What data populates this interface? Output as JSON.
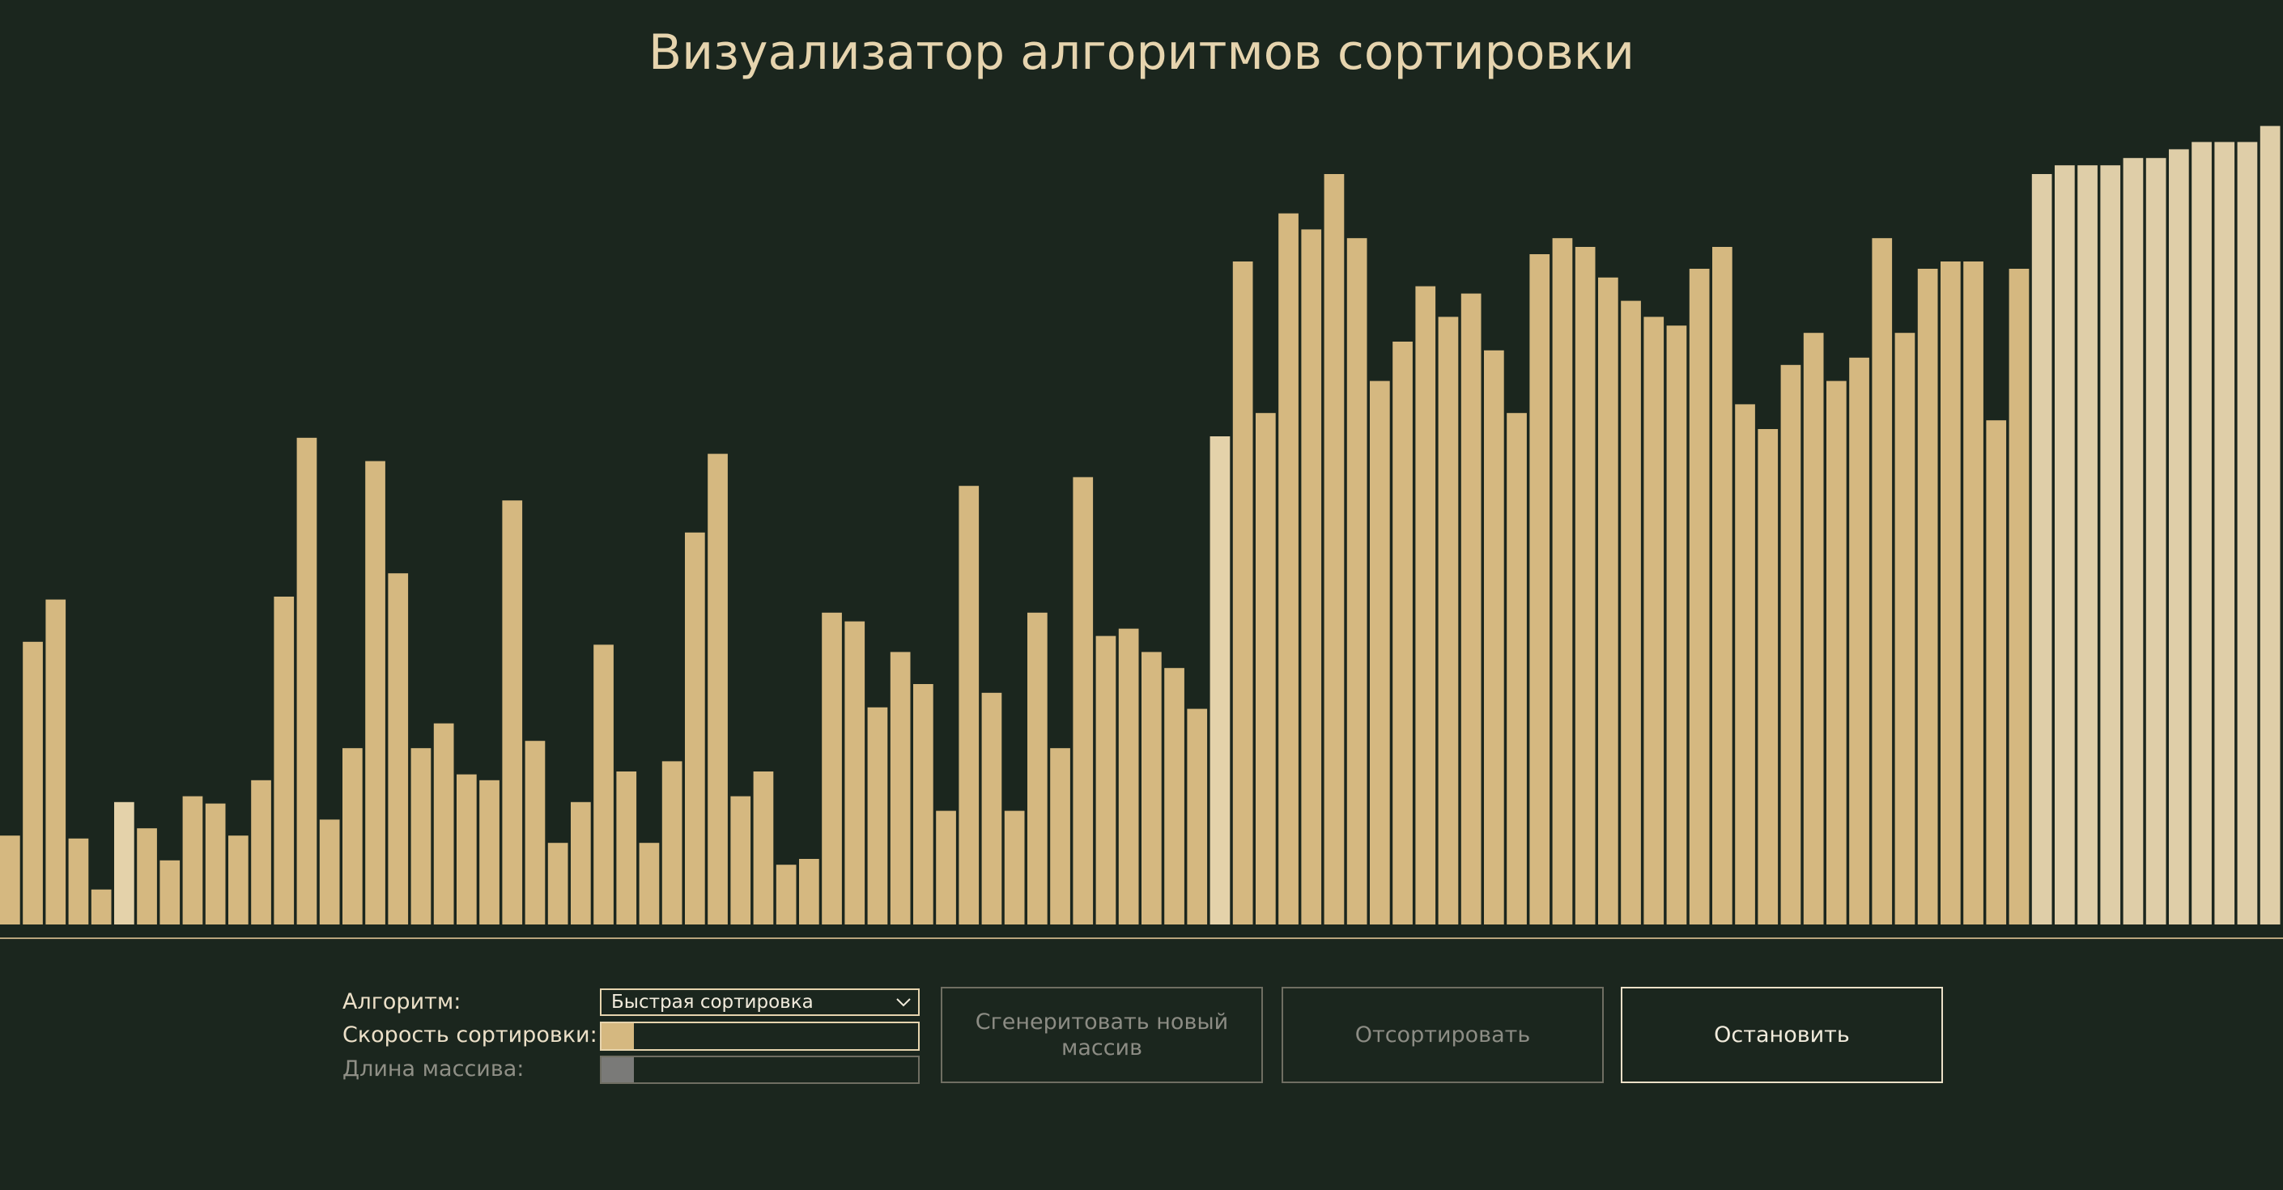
{
  "title": "Визуализатор алгоритмов сортировки",
  "array": {
    "values": [
      61,
      194,
      223,
      59,
      24,
      84,
      66,
      44,
      88,
      83,
      61,
      99,
      225,
      334,
      72,
      121,
      318,
      241,
      121,
      138,
      103,
      99,
      291,
      126,
      56,
      84,
      192,
      105,
      56,
      112,
      269,
      323,
      88,
      105,
      41,
      45,
      214,
      208,
      149,
      187,
      165,
      78,
      301,
      159,
      78,
      214,
      121,
      307,
      198,
      203,
      187,
      176,
      148,
      335,
      455,
      351,
      488,
      477,
      515,
      471,
      373,
      400,
      438,
      417,
      433,
      394,
      351,
      460,
      471,
      465,
      444,
      428,
      417,
      411,
      450,
      465,
      357,
      340,
      384,
      406,
      373,
      389,
      471,
      406,
      450,
      455,
      455,
      346,
      450,
      515,
      521,
      521,
      521,
      526,
      526,
      532,
      537,
      537,
      537,
      548
    ],
    "colors": [
      "#d5b880",
      "#d5b880",
      "#d5b880",
      "#d5b880",
      "#d5b880",
      "#e4d2aa",
      "#d5b880",
      "#d5b880",
      "#d5b880",
      "#d5b880",
      "#d5b880",
      "#d5b880",
      "#d5b880",
      "#d5b880",
      "#d5b880",
      "#d5b880",
      "#d5b880",
      "#d5b880",
      "#d5b880",
      "#d5b880",
      "#d5b880",
      "#d5b880",
      "#d5b880",
      "#d5b880",
      "#d5b880",
      "#d5b880",
      "#d5b880",
      "#d5b880",
      "#d5b880",
      "#d5b880",
      "#d5b880",
      "#d5b880",
      "#d5b880",
      "#d5b880",
      "#d5b880",
      "#d5b880",
      "#d5b880",
      "#d5b880",
      "#d5b880",
      "#d5b880",
      "#d5b880",
      "#d5b880",
      "#d5b880",
      "#d5b880",
      "#d5b880",
      "#d5b880",
      "#d5b880",
      "#d5b880",
      "#d5b880",
      "#d5b880",
      "#d5b880",
      "#d5b880",
      "#d5b880",
      "#e4d2aa",
      "#d5b880",
      "#d5b880",
      "#d5b880",
      "#d5b880",
      "#d5b880",
      "#d5b880",
      "#d5b880",
      "#d5b880",
      "#d5b880",
      "#d5b880",
      "#d5b880",
      "#d5b880",
      "#d5b880",
      "#d5b880",
      "#d5b880",
      "#d5b880",
      "#d5b880",
      "#d5b880",
      "#d5b880",
      "#d5b880",
      "#d5b880",
      "#d5b880",
      "#d5b880",
      "#d5b880",
      "#d5b880",
      "#d5b880",
      "#d5b880",
      "#d5b880",
      "#d5b880",
      "#d5b880",
      "#d5b880",
      "#d5b880",
      "#d5b880",
      "#d5b880",
      "#d5b880",
      "#dfcea8",
      "#dfcea8",
      "#dfcea8",
      "#dfcea8",
      "#dfcea8",
      "#dfcea8",
      "#dfcea8",
      "#dfcea8",
      "#dfcea8",
      "#dfcea8",
      "#dfcea8"
    ]
  },
  "controls": {
    "algorithm_label": "Алгоритм:",
    "algorithm_value": "Быстрая сортировка",
    "speed_label": "Скорость сортировки:",
    "length_label": "Длина массива:",
    "buttons": [
      "Сгенеритовать новый массив",
      "Отсортировать",
      "Остановить"
    ]
  }
}
